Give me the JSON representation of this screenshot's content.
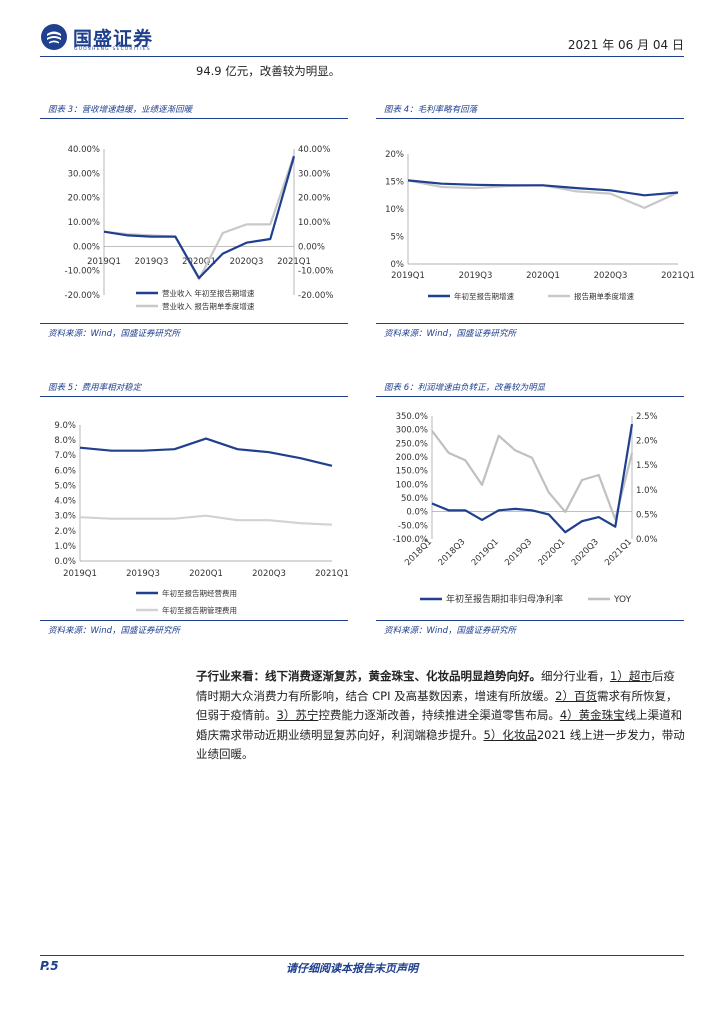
{
  "header": {
    "brand": "国盛证券",
    "brand_sub": "GUOSHENG SECURITIES",
    "date": "2021 年 06 月 04 日"
  },
  "intro_line": "94.9 亿元，改善较为明显。",
  "figures": {
    "fig3": {
      "title": "图表 3：营收增速趋缓，业绩逐渐回暖",
      "source": "资料来源：Wind，国盛证券研究所"
    },
    "fig4": {
      "title": "图表 4：毛利率略有回落",
      "source": "资料来源：Wind，国盛证券研究所"
    },
    "fig5": {
      "title": "图表 5：费用率相对稳定",
      "source": "资料来源：Wind，国盛证券研究所"
    },
    "fig6": {
      "title": "图表 6：利润增速由负转正，改善较为明显",
      "source": "资料来源：Wind，国盛证券研究所"
    }
  },
  "chart_data": [
    {
      "id": "fig3",
      "type": "line",
      "x": [
        "2019Q1",
        "2019Q2",
        "2019Q3",
        "2019Q4",
        "2020Q1",
        "2020Q2",
        "2020Q3",
        "2020Q4",
        "2021Q1"
      ],
      "x_tick_labels": [
        "2019Q1",
        "2019Q3",
        "2020Q1",
        "2020Q3",
        "2021Q1"
      ],
      "y_ticks_left": [
        "40.00%",
        "30.00%",
        "20.00%",
        "10.00%",
        "0.00%",
        "-10.00%",
        "-20.00%"
      ],
      "y_ticks_right": [
        "40.00%",
        "30.00%",
        "20.00%",
        "10.00%",
        "0.00%",
        "-10.00%",
        "-20.00%"
      ],
      "ylim": [
        -20,
        40
      ],
      "series": [
        {
          "name": "营业收入 年初至报告期增速",
          "color": "#1f3f8f",
          "values": [
            6.0,
            4.5,
            4.0,
            4.0,
            -13.0,
            -3.0,
            1.5,
            3.0,
            37.0
          ]
        },
        {
          "name": "营业收入 报告期单季度增速",
          "color": "#c8c8c8",
          "values": [
            6.0,
            5.0,
            4.5,
            4.0,
            -13.5,
            5.5,
            9.0,
            9.0,
            37.5
          ]
        }
      ]
    },
    {
      "id": "fig4",
      "type": "line",
      "x": [
        "2019Q1",
        "2019Q2",
        "2019Q3",
        "2019Q4",
        "2020Q1",
        "2020Q2",
        "2020Q3",
        "2020Q4",
        "2021Q1"
      ],
      "x_tick_labels": [
        "2019Q1",
        "2019Q3",
        "2020Q1",
        "2020Q3",
        "2021Q1"
      ],
      "y_ticks": [
        "20%",
        "15%",
        "10%",
        "5%",
        "0%"
      ],
      "ylim": [
        0,
        20
      ],
      "series": [
        {
          "name": "年初至报告期增速",
          "color": "#1f3f8f",
          "values": [
            15.2,
            14.6,
            14.4,
            14.3,
            14.3,
            13.8,
            13.4,
            12.5,
            13.0
          ]
        },
        {
          "name": "报告期单季度增速",
          "color": "#c8c8c8",
          "values": [
            15.2,
            14.0,
            13.8,
            14.2,
            14.3,
            13.2,
            12.8,
            10.2,
            13.0
          ]
        }
      ]
    },
    {
      "id": "fig5",
      "type": "line",
      "x": [
        "2019Q1",
        "2019Q2",
        "2019Q3",
        "2019Q4",
        "2020Q1",
        "2020Q2",
        "2020Q3",
        "2020Q4",
        "2021Q1"
      ],
      "x_tick_labels": [
        "2019Q1",
        "2019Q3",
        "2020Q1",
        "2020Q3",
        "2021Q1"
      ],
      "y_ticks": [
        "9.0%",
        "8.0%",
        "7.0%",
        "6.0%",
        "5.0%",
        "4.0%",
        "3.0%",
        "2.0%",
        "1.0%",
        "0.0%"
      ],
      "ylim": [
        0,
        9
      ],
      "series": [
        {
          "name": "年初至报告期经营费用",
          "color": "#1f3f8f",
          "values": [
            7.5,
            7.3,
            7.3,
            7.4,
            8.1,
            7.4,
            7.2,
            6.8,
            6.3
          ]
        },
        {
          "name": "年初至报告期管理费用",
          "color": "#d2d2d2",
          "values": [
            2.9,
            2.8,
            2.8,
            2.8,
            3.0,
            2.7,
            2.7,
            2.5,
            2.4
          ]
        }
      ]
    },
    {
      "id": "fig6",
      "type": "line",
      "x": [
        "2018Q1",
        "2018Q2",
        "2018Q3",
        "2018Q4",
        "2019Q1",
        "2019Q2",
        "2019Q3",
        "2019Q4",
        "2020Q1",
        "2020Q2",
        "2020Q3",
        "2020Q4",
        "2021Q1"
      ],
      "x_tick_labels": [
        "2018Q1",
        "2018Q3",
        "2019Q1",
        "2019Q3",
        "2020Q1",
        "2020Q3",
        "2021Q1"
      ],
      "y_ticks_left": [
        "350.0%",
        "300.0%",
        "250.0%",
        "200.0%",
        "150.0%",
        "100.0%",
        "50.0%",
        "0.0%",
        "-50.0%",
        "-100.0%"
      ],
      "y_ticks_right": [
        "2.5%",
        "2.0%",
        "1.5%",
        "1.0%",
        "0.5%",
        "0.0%"
      ],
      "ylim_left": [
        -100,
        350
      ],
      "ylim_right": [
        0,
        2.5
      ],
      "series": [
        {
          "name": "年初至报告期扣非归母净利率",
          "color": "#1f3f8f",
          "axis": "left",
          "values": [
            30.0,
            5.0,
            5.0,
            -30.0,
            5.0,
            10.0,
            5.0,
            -10.0,
            -75.0,
            -35.0,
            -20.0,
            -55.0,
            320.0
          ]
        },
        {
          "name": "YOY",
          "color": "#c0c0c0",
          "axis": "right",
          "values": [
            2.2,
            1.75,
            1.6,
            1.1,
            2.1,
            1.8,
            1.65,
            0.95,
            0.55,
            1.2,
            1.3,
            0.4,
            1.75
          ]
        }
      ]
    }
  ],
  "paragraph": {
    "lead": "子行业来看：线下消费逐渐复苏，黄金珠宝、化妆品明显趋势向好。",
    "t1": "细分行业看，",
    "n1": "1）超市",
    "t2": "后疫情时期大众消费力有所影响，结合 CPI 及高基数因素，增速有所放缓。",
    "n2": "2）百货",
    "t3": "需求有所恢复，但弱于疫情前。",
    "n3": "3）苏宁",
    "t4": "控费能力逐渐改善，持续推进全渠道零售布局。",
    "n4": "4）黄金珠宝",
    "t5": "线上渠道和婚庆需求带动近期业绩明显复苏向好，利润端稳步提升。",
    "n5": "5）化妆品",
    "t6": "2021 线上进一步发力，带动业绩回暖。"
  },
  "footer": {
    "page": "P.5",
    "disclaimer": "请仔细阅读本报告末页声明"
  },
  "colors": {
    "brand": "#1f3f8f",
    "series_primary": "#1f3f8f",
    "series_secondary": "#c8c8c8"
  }
}
